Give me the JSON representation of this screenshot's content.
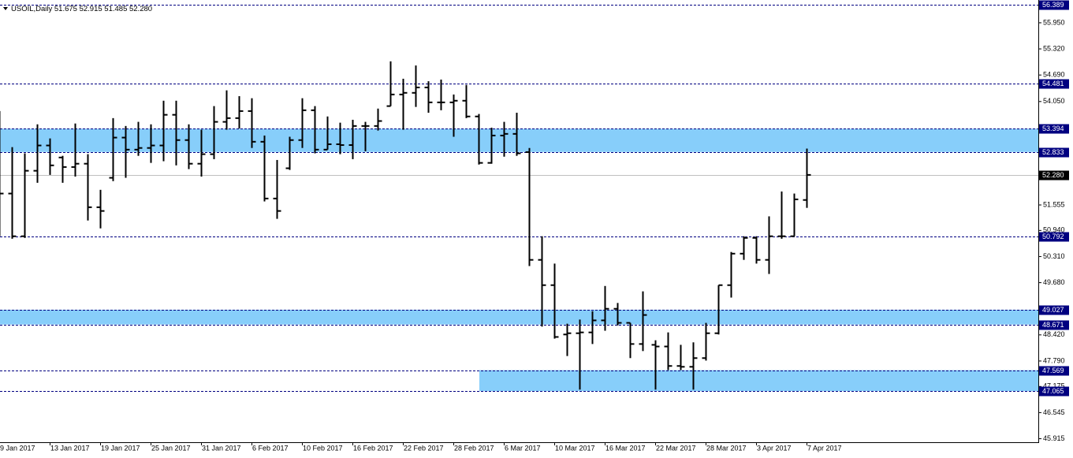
{
  "chart_data": {
    "type": "ohlc",
    "title": "USOIL,Daily  51.675 52.915 51.485 52.280",
    "categories": [
      "9 Jan 2017",
      null,
      null,
      null,
      "13 Jan 2017",
      null,
      null,
      null,
      "19 Jan 2017",
      null,
      null,
      null,
      "25 Jan 2017",
      null,
      null,
      null,
      "31 Jan 2017",
      null,
      null,
      null,
      "6 Feb 2017",
      null,
      null,
      null,
      "10 Feb 2017",
      null,
      null,
      null,
      "16 Feb 2017",
      null,
      null,
      null,
      "22 Feb 2017",
      null,
      null,
      null,
      "28 Feb 2017",
      null,
      null,
      null,
      "6 Mar 2017",
      null,
      null,
      null,
      "10 Mar 2017",
      null,
      null,
      null,
      "16 Mar 2017",
      null,
      null,
      null,
      "22 Mar 2017",
      null,
      null,
      null,
      "28 Mar 2017",
      null,
      null,
      null,
      "3 Apr 2017",
      null,
      null,
      null,
      "7 Apr 2017"
    ],
    "open": [
      52.7,
      51.83,
      50.8,
      52.38,
      52.99,
      52.7,
      52.47,
      52.55,
      51.5,
      52.21,
      53.18,
      52.89,
      52.93,
      52.99,
      53.73,
      53.12,
      52.55,
      52.78,
      53.56,
      53.65,
      53.82,
      53.08,
      51.71,
      52.44,
      53.12,
      53.84,
      52.89,
      53.02,
      53.0,
      53.46,
      53.46,
      53.94,
      54.22,
      54.26,
      54.39,
      54.03,
      54.03,
      54.07,
      53.69,
      52.57,
      53.23,
      53.27,
      52.83,
      50.23,
      49.62,
      48.43,
      48.46,
      48.48,
      48.77,
      49.05,
      48.71,
      48.2,
      48.18,
      48.14,
      47.67,
      47.65,
      47.86,
      48.46,
      49.62,
      50.38,
      50.76,
      50.23,
      50.8,
      50.8,
      51.675
    ],
    "high": [
      53.82,
      52.95,
      52.8,
      53.5,
      53.16,
      52.74,
      53.52,
      52.78,
      51.92,
      53.65,
      53.46,
      53.56,
      53.5,
      54.07,
      54.07,
      53.5,
      53.37,
      53.94,
      54.32,
      54.18,
      54.13,
      53.23,
      52.64,
      53.2,
      54.13,
      53.94,
      53.69,
      53.54,
      53.61,
      53.56,
      53.88,
      55.02,
      54.6,
      54.92,
      54.54,
      54.58,
      54.22,
      54.45,
      53.75,
      53.42,
      53.56,
      53.78,
      52.93,
      50.8,
      50.14,
      48.69,
      48.79,
      48.99,
      49.6,
      49.19,
      48.71,
      49.47,
      48.29,
      48.48,
      48.18,
      48.24,
      48.71,
      49.62,
      50.42,
      50.8,
      50.8,
      51.28,
      51.88,
      51.83,
      52.915
    ],
    "low": [
      50.8,
      50.74,
      50.76,
      52.09,
      52.28,
      52.09,
      52.24,
      51.18,
      50.99,
      52.13,
      52.21,
      52.74,
      52.57,
      52.61,
      52.51,
      52.42,
      52.24,
      52.66,
      53.37,
      53.4,
      52.93,
      51.64,
      51.22,
      52.4,
      52.93,
      52.8,
      52.89,
      52.78,
      52.66,
      52.85,
      53.35,
      53.94,
      53.37,
      53.92,
      53.78,
      53.84,
      53.2,
      53.65,
      52.53,
      52.55,
      52.72,
      52.74,
      50.08,
      48.62,
      48.33,
      47.91,
      47.1,
      48.2,
      48.52,
      48.65,
      47.86,
      48.03,
      47.1,
      47.57,
      47.57,
      47.1,
      47.8,
      48.43,
      49.32,
      50.23,
      50.14,
      49.89,
      50.74,
      50.8,
      51.485
    ],
    "close": [
      51.83,
      50.8,
      52.38,
      52.99,
      52.51,
      52.47,
      52.55,
      51.5,
      51.41,
      53.18,
      52.89,
      52.93,
      52.99,
      53.73,
      53.12,
      52.55,
      52.78,
      53.56,
      53.65,
      53.82,
      53.08,
      51.71,
      51.41,
      53.12,
      53.84,
      52.89,
      53.02,
      53.0,
      53.46,
      53.46,
      53.58,
      54.22,
      54.26,
      54.39,
      54.03,
      54.03,
      54.07,
      53.69,
      52.57,
      53.23,
      53.27,
      52.8,
      50.23,
      49.62,
      48.37,
      48.46,
      48.48,
      48.77,
      49.05,
      48.71,
      48.2,
      48.9,
      48.14,
      47.67,
      47.65,
      47.86,
      48.46,
      49.62,
      50.38,
      50.76,
      50.23,
      50.8,
      50.8,
      51.69,
      52.28
    ],
    "color": "#000000",
    "ylim": [
      45.83,
      56.5
    ],
    "yticks": [
      {
        "value": 55.95,
        "label": "55.950"
      },
      {
        "value": 55.32,
        "label": "55.320"
      },
      {
        "value": 54.69,
        "label": "54.690"
      },
      {
        "value": 54.05,
        "label": "54.050"
      },
      51.555,
      {
        "value": 50.94,
        "label": "50.940"
      },
      {
        "value": 50.31,
        "label": "50.310"
      },
      {
        "value": 49.68,
        "label": "49.680"
      },
      {
        "value": 48.42,
        "label": "48.420"
      },
      {
        "value": 47.79,
        "label": "47.790"
      },
      47.175,
      46.545,
      45.915
    ],
    "levels": [
      56.389,
      54.481,
      53.394,
      52.833,
      50.792,
      49.027,
      48.671,
      47.569,
      47.065
    ],
    "level_color": "#000080",
    "current": {
      "value": 52.28,
      "label": "52.280"
    },
    "zones": [
      {
        "from": 53.394,
        "to": 52.833
      },
      {
        "from": 49.027,
        "to": 48.671
      },
      {
        "from": 47.569,
        "to": 47.065
      }
    ],
    "zone_color": "#87cefa"
  }
}
